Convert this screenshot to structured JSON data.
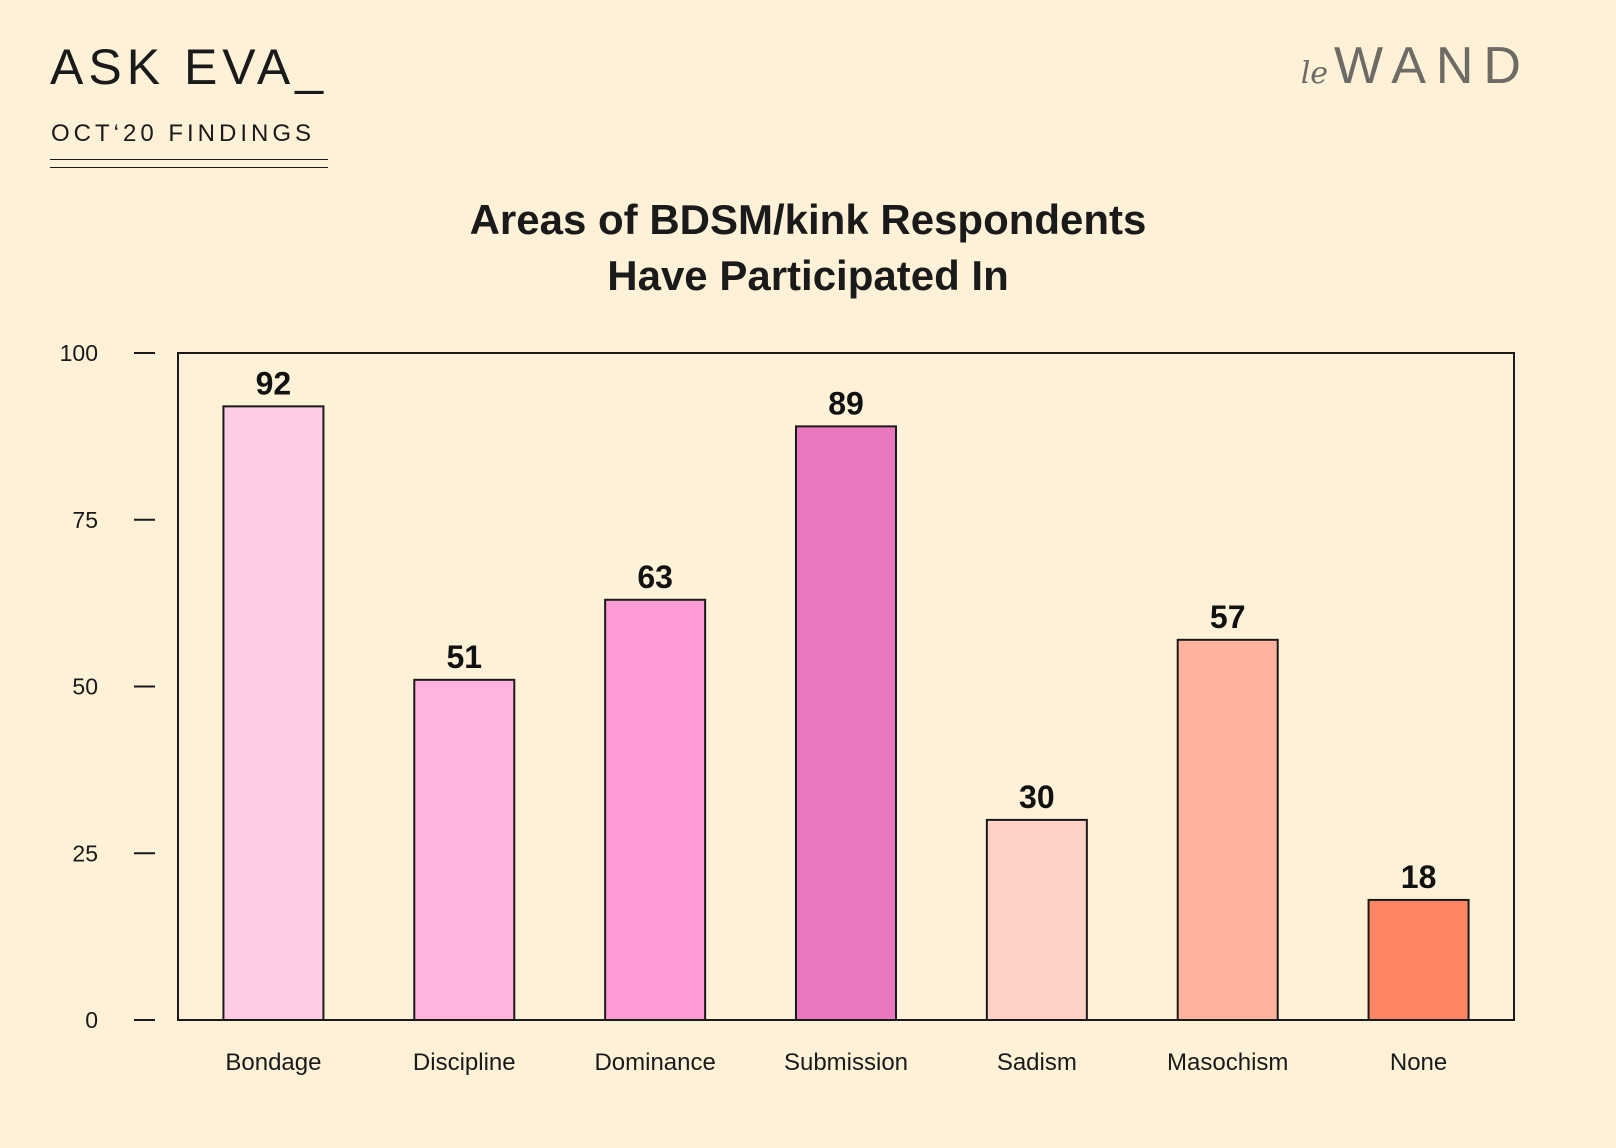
{
  "header": {
    "brand": "ASK EVA_",
    "subtitle": "OCT‘20 FINDINGS",
    "logo_prefix": "le",
    "logo_word": "WAND"
  },
  "chart_data": {
    "type": "bar",
    "title_lines": [
      "Areas of BDSM/kink Respondents",
      "Have Participated In"
    ],
    "categories": [
      "Bondage",
      "Discipline",
      "Dominance",
      "Submission",
      "Sadism",
      "Masochism",
      "None"
    ],
    "values": [
      92,
      51,
      63,
      89,
      30,
      57,
      18
    ],
    "colors": [
      "#ffcce6",
      "#ffb3de",
      "#ff9bd5",
      "#ea76bf",
      "#ffd1c7",
      "#ffb39f",
      "#ff8662"
    ],
    "ylim": [
      0,
      100
    ],
    "yticks": [
      0,
      25,
      50,
      75,
      100
    ],
    "xlabel": "",
    "ylabel": "",
    "grid": false,
    "legend": false
  }
}
